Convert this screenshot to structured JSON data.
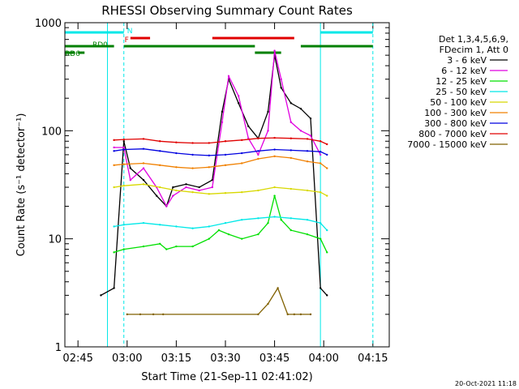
{
  "chart_data": {
    "type": "line",
    "title": "RHESSI Observing Summary Count Rates",
    "xlabel": "Start Time (21-Sep-11 02:41:02)",
    "ylabel": "Count Rate (s⁻¹ detector⁻¹)",
    "y_scale": "log",
    "ylim": [
      1,
      1000
    ],
    "xlim": [
      "02:41",
      "04:20"
    ],
    "x_ticks": [
      "02:45",
      "03:00",
      "03:15",
      "03:30",
      "03:45",
      "04:00",
      "04:15"
    ],
    "y_ticks": [
      "1",
      "10",
      "100",
      "1000"
    ],
    "legend_position": "right",
    "legend_header": [
      "Det 1,3,4,5,6,9,",
      "FDecim 1, Att 0"
    ],
    "series": [
      {
        "name": "3 - 6 keV",
        "color": "#000000",
        "x": [
          "02:52",
          "02:56",
          "02:59",
          "03:01",
          "03:05",
          "03:09",
          "03:12",
          "03:14",
          "03:18",
          "03:22",
          "03:26",
          "03:29",
          "03:31",
          "03:34",
          "03:37",
          "03:40",
          "03:43",
          "03:45",
          "03:47",
          "03:50",
          "03:53",
          "03:56",
          "03:59",
          "04:01"
        ],
        "y": [
          3.0,
          3.5,
          80,
          45,
          35,
          25,
          20,
          30,
          32,
          30,
          35,
          150,
          300,
          180,
          110,
          85,
          150,
          500,
          250,
          180,
          160,
          130,
          3.5,
          3.0
        ]
      },
      {
        "name": "6 - 12 keV",
        "color": "#e000e0",
        "x": [
          "02:56",
          "02:59",
          "03:01",
          "03:05",
          "03:09",
          "03:12",
          "03:14",
          "03:18",
          "03:22",
          "03:26",
          "03:29",
          "03:31",
          "03:34",
          "03:37",
          "03:40",
          "03:43",
          "03:45",
          "03:47",
          "03:50",
          "03:53",
          "03:56",
          "03:59"
        ],
        "y": [
          70,
          70,
          35,
          45,
          30,
          20,
          25,
          30,
          28,
          30,
          120,
          320,
          210,
          85,
          60,
          100,
          550,
          300,
          120,
          100,
          90,
          60
        ]
      },
      {
        "name": "12 - 25 keV",
        "color": "#00e000",
        "x": [
          "02:56",
          "02:59",
          "03:05",
          "03:10",
          "03:12",
          "03:15",
          "03:20",
          "03:25",
          "03:28",
          "03:31",
          "03:35",
          "03:40",
          "03:43",
          "03:45",
          "03:47",
          "03:50",
          "03:55",
          "03:59",
          "04:01"
        ],
        "y": [
          7.5,
          8,
          8.5,
          9,
          8,
          8.5,
          8.5,
          10,
          12,
          11,
          10,
          11,
          14,
          25,
          15,
          12,
          11,
          10,
          7.5
        ]
      },
      {
        "name": "25 - 50 keV",
        "color": "#00e8e8",
        "x": [
          "02:56",
          "02:59",
          "03:05",
          "03:10",
          "03:15",
          "03:20",
          "03:25",
          "03:30",
          "03:35",
          "03:40",
          "03:45",
          "03:50",
          "03:55",
          "03:59",
          "04:01"
        ],
        "y": [
          13,
          13.5,
          14,
          13.5,
          13,
          12.5,
          13,
          14,
          15,
          15.5,
          16,
          15.5,
          15,
          14,
          12
        ]
      },
      {
        "name": "50 - 100 keV",
        "color": "#d8d800",
        "x": [
          "02:56",
          "02:59",
          "03:05",
          "03:10",
          "03:15",
          "03:20",
          "03:25",
          "03:30",
          "03:35",
          "03:40",
          "03:45",
          "03:50",
          "03:55",
          "03:59",
          "04:01"
        ],
        "y": [
          30,
          31,
          32,
          30,
          28,
          27,
          26,
          26.5,
          27,
          28,
          30,
          29,
          28,
          27,
          25
        ]
      },
      {
        "name": "100 - 300 keV",
        "color": "#f08000",
        "x": [
          "02:56",
          "02:59",
          "03:05",
          "03:10",
          "03:15",
          "03:20",
          "03:25",
          "03:30",
          "03:35",
          "03:40",
          "03:45",
          "03:50",
          "03:55",
          "03:59",
          "04:01"
        ],
        "y": [
          48,
          49,
          50,
          48,
          46,
          45,
          46,
          48,
          50,
          55,
          58,
          56,
          52,
          50,
          45
        ]
      },
      {
        "name": "300 - 800 keV",
        "color": "#0000e0",
        "x": [
          "02:56",
          "02:59",
          "03:05",
          "03:10",
          "03:15",
          "03:20",
          "03:25",
          "03:30",
          "03:35",
          "03:40",
          "03:45",
          "03:50",
          "03:55",
          "03:59",
          "04:01"
        ],
        "y": [
          65,
          67,
          68,
          65,
          62,
          60,
          59,
          60,
          62,
          65,
          67,
          66,
          65,
          64,
          60
        ]
      },
      {
        "name": "800 - 7000 keV",
        "color": "#e00000",
        "x": [
          "02:56",
          "02:59",
          "03:05",
          "03:10",
          "03:15",
          "03:20",
          "03:25",
          "03:30",
          "03:35",
          "03:40",
          "03:45",
          "03:50",
          "03:55",
          "03:59",
          "04:01"
        ],
        "y": [
          82,
          83,
          84,
          80,
          78,
          77,
          77,
          80,
          82,
          85,
          86,
          85,
          84,
          80,
          75
        ]
      },
      {
        "name": "7000 - 15000 keV",
        "color": "#806000",
        "x": [
          "03:00",
          "03:04",
          "03:08",
          "03:11",
          "03:40",
          "03:43",
          "03:46",
          "03:49",
          "03:51",
          "03:53",
          "03:56"
        ],
        "y": [
          2,
          2,
          2,
          2,
          2,
          2.5,
          3.5,
          2,
          2,
          2,
          2
        ]
      }
    ],
    "flag_bars": [
      {
        "label": "N",
        "color": "#00e8e8",
        "intervals": [
          [
            "02:41",
            "02:59"
          ],
          [
            "03:59",
            "04:15"
          ]
        ]
      },
      {
        "label": "F",
        "color": "#e00000",
        "intervals": [
          [
            "03:01",
            "03:07"
          ],
          [
            "03:26",
            "03:51"
          ]
        ]
      },
      {
        "label": "RD0",
        "color": "#008000",
        "intervals": [
          [
            "02:41",
            "02:56"
          ],
          [
            "02:59",
            "03:39"
          ],
          [
            "03:53",
            "04:15"
          ]
        ]
      },
      {
        "label": "RD6",
        "color": "#008000",
        "intervals": [
          [
            "02:41",
            "02:44"
          ],
          [
            "02:45",
            "02:47"
          ],
          [
            "03:39",
            "03:47"
          ]
        ]
      }
    ],
    "vertical_lines": [
      {
        "x": "02:54",
        "style": "solid",
        "color": "#00e8e8"
      },
      {
        "x": "02:59",
        "style": "dashed",
        "color": "#00e8e8"
      },
      {
        "x": "03:59",
        "style": "solid",
        "color": "#00e8e8"
      },
      {
        "x": "04:15",
        "style": "dashed",
        "color": "#00e8e8"
      }
    ]
  },
  "footer_date": "20-Oct-2021 11:18"
}
